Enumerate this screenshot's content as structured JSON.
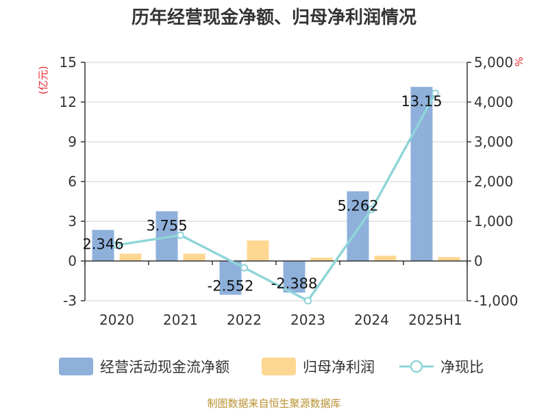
{
  "chart_data": {
    "type": "bar",
    "title": "历年经营现金净额、归母净利润情况",
    "categories": [
      "2020",
      "2021",
      "2022",
      "2023",
      "2024",
      "2025H1"
    ],
    "series": [
      {
        "name": "经营活动现金流净额",
        "type": "bar",
        "axis": "left",
        "color": "#8eb0db",
        "values": [
          2.346,
          3.755,
          -2.552,
          -2.388,
          5.262,
          13.15
        ],
        "labels": [
          "2.346",
          "3.755",
          "-2.552",
          "-2.388",
          "5.262",
          "13.15"
        ]
      },
      {
        "name": "归母净利润",
        "type": "bar",
        "axis": "left",
        "color": "#fdd792",
        "values": [
          0.55,
          0.55,
          1.55,
          0.25,
          0.4,
          0.3
        ]
      },
      {
        "name": "净现比",
        "type": "line",
        "axis": "right",
        "color": "#8fd5d8",
        "values": [
          400,
          650,
          -170,
          -1000,
          1300,
          4220
        ]
      }
    ],
    "y_left": {
      "unit": "(亿元)",
      "ylim": [
        -3,
        15
      ],
      "ticks": [
        -3,
        0,
        3,
        6,
        9,
        12,
        15
      ],
      "tick_labels": [
        "-3",
        "0",
        "3",
        "6",
        "9",
        "12",
        "15"
      ]
    },
    "y_right": {
      "unit": "%",
      "ylim": [
        -1000,
        5000
      ],
      "ticks": [
        -1000,
        0,
        1000,
        2000,
        3000,
        4000,
        5000
      ],
      "tick_labels": [
        "-1,000",
        "0",
        "1,000",
        "2,000",
        "3,000",
        "4,000",
        "5,000"
      ]
    },
    "grid": true,
    "legend_position": "bottom"
  },
  "source_text": "制图数据来自恒生聚源数据库"
}
